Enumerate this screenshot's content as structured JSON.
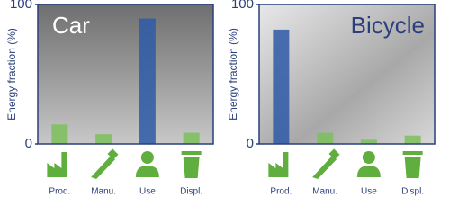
{
  "chart_data": [
    {
      "type": "bar",
      "title": "Car",
      "ylabel": "Energy fraction (%)",
      "categories": [
        "Prod.",
        "Manu.",
        "Use",
        "Displ."
      ],
      "values": [
        14,
        7,
        90,
        8
      ],
      "colors": [
        "#7cc05b",
        "#7cc05b",
        "#2e5aa8",
        "#7cc05b"
      ],
      "ylim": [
        0,
        100
      ],
      "yticks": [
        0,
        100
      ]
    },
    {
      "type": "bar",
      "title": "Bicycle",
      "ylabel": "Energy fraction (%)",
      "categories": [
        "Prod.",
        "Manu.",
        "Use",
        "Displ."
      ],
      "values": [
        82,
        8,
        3,
        6
      ],
      "colors": [
        "#2e5aa8",
        "#7cc05b",
        "#7cc05b",
        "#7cc05b"
      ],
      "ylim": [
        0,
        100
      ],
      "yticks": [
        0,
        100
      ]
    }
  ]
}
